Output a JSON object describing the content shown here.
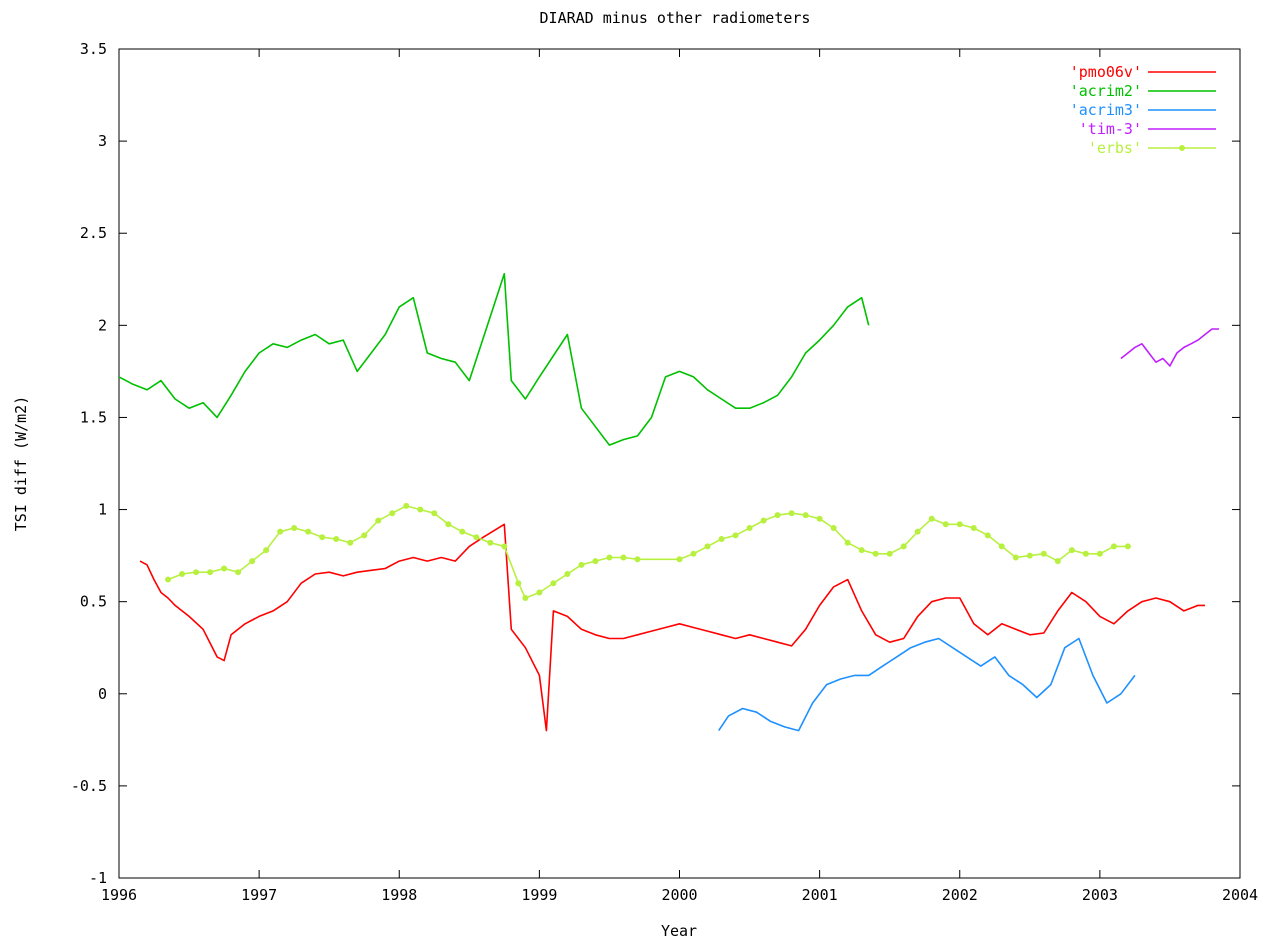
{
  "chart_data": {
    "type": "line",
    "title": "DIARAD minus other radiometers",
    "xlabel": "Year",
    "ylabel": "TSI diff (W/m2)",
    "xlim": [
      1996,
      2004
    ],
    "ylim": [
      -1,
      3.5
    ],
    "xticks": [
      1996,
      1997,
      1998,
      1999,
      2000,
      2001,
      2002,
      2003,
      2004
    ],
    "yticks": [
      -1,
      -0.5,
      0,
      0.5,
      1,
      1.5,
      2,
      2.5,
      3,
      3.5
    ],
    "xtick_labels": [
      "1996",
      "1997",
      "1998",
      "1999",
      "2000",
      "2001",
      "2002",
      "2003",
      "2004"
    ],
    "ytick_labels": [
      "-1",
      "-0.5",
      "0",
      "0.5",
      "1",
      "1.5",
      "2",
      "2.5",
      "3",
      "3.5"
    ],
    "grid": false,
    "legend_position": "top-right",
    "series": [
      {
        "name": "'pmo06v'",
        "color": "#ff0000",
        "x": [
          1996.15,
          1996.2,
          1996.25,
          1996.3,
          1996.35,
          1996.4,
          1996.5,
          1996.6,
          1996.7,
          1996.75,
          1996.8,
          1996.9,
          1997.0,
          1997.1,
          1997.2,
          1997.3,
          1997.4,
          1997.5,
          1997.6,
          1997.7,
          1997.8,
          1997.9,
          1998.0,
          1998.1,
          1998.2,
          1998.3,
          1998.4,
          1998.5,
          1998.6,
          1998.75,
          1998.8,
          1998.9,
          1999.0,
          1999.05,
          1999.1,
          1999.2,
          1999.3,
          1999.4,
          1999.5,
          1999.6,
          1999.7,
          1999.8,
          1999.9,
          2000.0,
          2000.1,
          2000.2,
          2000.3,
          2000.4,
          2000.5,
          2000.6,
          2000.7,
          2000.8,
          2000.9,
          2001.0,
          2001.1,
          2001.2,
          2001.3,
          2001.4,
          2001.5,
          2001.6,
          2001.7,
          2001.8,
          2001.9,
          2002.0,
          2002.1,
          2002.2,
          2002.3,
          2002.4,
          2002.5,
          2002.6,
          2002.7,
          2002.8,
          2002.9,
          2003.0,
          2003.1,
          2003.2,
          2003.3,
          2003.4,
          2003.5,
          2003.6,
          2003.7,
          2003.75
        ],
        "y": [
          0.72,
          0.7,
          0.62,
          0.55,
          0.52,
          0.48,
          0.42,
          0.35,
          0.2,
          0.18,
          0.32,
          0.38,
          0.42,
          0.45,
          0.5,
          0.6,
          0.65,
          0.66,
          0.64,
          0.66,
          0.67,
          0.68,
          0.72,
          0.74,
          0.72,
          0.74,
          0.72,
          0.8,
          0.85,
          0.92,
          0.35,
          0.25,
          0.1,
          -0.2,
          0.45,
          0.42,
          0.35,
          0.32,
          0.3,
          0.3,
          0.32,
          0.34,
          0.36,
          0.38,
          0.36,
          0.34,
          0.32,
          0.3,
          0.32,
          0.3,
          0.28,
          0.26,
          0.35,
          0.48,
          0.58,
          0.62,
          0.45,
          0.32,
          0.28,
          0.3,
          0.42,
          0.5,
          0.52,
          0.52,
          0.38,
          0.32,
          0.38,
          0.35,
          0.32,
          0.33,
          0.45,
          0.55,
          0.5,
          0.42,
          0.38,
          0.45,
          0.5,
          0.52,
          0.5,
          0.45,
          0.48,
          0.48
        ]
      },
      {
        "name": "'acrim2'",
        "color": "#00c000",
        "x": [
          1996.0,
          1996.1,
          1996.2,
          1996.3,
          1996.4,
          1996.5,
          1996.6,
          1996.7,
          1996.8,
          1996.9,
          1997.0,
          1997.1,
          1997.2,
          1997.3,
          1997.4,
          1997.5,
          1997.6,
          1997.7,
          1997.8,
          1997.9,
          1998.0,
          1998.1,
          1998.2,
          1998.3,
          1998.4,
          1998.5,
          1998.75,
          1998.8,
          1998.9,
          1999.0,
          1999.2,
          1999.3,
          1999.4,
          1999.5,
          1999.6,
          1999.7,
          1999.8,
          1999.9,
          2000.0,
          2000.1,
          2000.2,
          2000.3,
          2000.4,
          2000.5,
          2000.6,
          2000.7,
          2000.8,
          2000.9,
          2001.0,
          2001.1,
          2001.2,
          2001.3,
          2001.35
        ],
        "y": [
          1.72,
          1.68,
          1.65,
          1.7,
          1.6,
          1.55,
          1.58,
          1.5,
          1.62,
          1.75,
          1.85,
          1.9,
          1.88,
          1.92,
          1.95,
          1.9,
          1.92,
          1.75,
          1.85,
          1.95,
          2.1,
          2.15,
          1.85,
          1.82,
          1.8,
          1.7,
          2.28,
          1.7,
          1.6,
          1.72,
          1.95,
          1.55,
          1.45,
          1.35,
          1.38,
          1.4,
          1.5,
          1.72,
          1.75,
          1.72,
          1.65,
          1.6,
          1.55,
          1.55,
          1.58,
          1.62,
          1.72,
          1.85,
          1.92,
          2.0,
          2.1,
          2.15,
          2.0
        ]
      },
      {
        "name": "'acrim3'",
        "color": "#1e90ff",
        "x": [
          2000.28,
          2000.35,
          2000.45,
          2000.55,
          2000.65,
          2000.75,
          2000.85,
          2000.95,
          2001.05,
          2001.15,
          2001.25,
          2001.35,
          2001.45,
          2001.55,
          2001.65,
          2001.75,
          2001.85,
          2001.95,
          2002.05,
          2002.15,
          2002.25,
          2002.35,
          2002.45,
          2002.55,
          2002.65,
          2002.75,
          2002.85,
          2002.95,
          2003.05,
          2003.15,
          2003.25
        ],
        "y": [
          -0.2,
          -0.12,
          -0.08,
          -0.1,
          -0.15,
          -0.18,
          -0.2,
          -0.05,
          0.05,
          0.08,
          0.1,
          0.1,
          0.15,
          0.2,
          0.25,
          0.28,
          0.3,
          0.25,
          0.2,
          0.15,
          0.2,
          0.1,
          0.05,
          -0.02,
          0.05,
          0.25,
          0.3,
          0.1,
          -0.05,
          0.0,
          0.1
        ]
      },
      {
        "name": "'tim-3'",
        "color": "#c020ff",
        "x": [
          2003.15,
          2003.2,
          2003.25,
          2003.3,
          2003.35,
          2003.4,
          2003.45,
          2003.5,
          2003.55,
          2003.6,
          2003.65,
          2003.7,
          2003.75,
          2003.8,
          2003.85
        ],
        "y": [
          1.82,
          1.85,
          1.88,
          1.9,
          1.85,
          1.8,
          1.82,
          1.78,
          1.85,
          1.88,
          1.9,
          1.92,
          1.95,
          1.98,
          1.98
        ]
      },
      {
        "name": "'erbs'",
        "color": "#b8f040",
        "x": [
          1996.35,
          1996.45,
          1996.55,
          1996.65,
          1996.75,
          1996.85,
          1996.95,
          1997.05,
          1997.15,
          1997.25,
          1997.35,
          1997.45,
          1997.55,
          1997.65,
          1997.75,
          1997.85,
          1997.95,
          1998.05,
          1998.15,
          1998.25,
          1998.35,
          1998.45,
          1998.55,
          1998.65,
          1998.75,
          1998.85,
          1998.9,
          1999.0,
          1999.1,
          1999.2,
          1999.3,
          1999.4,
          1999.5,
          1999.6,
          1999.7,
          2000.0,
          2000.1,
          2000.2,
          2000.3,
          2000.4,
          2000.5,
          2000.6,
          2000.7,
          2000.8,
          2000.9,
          2001.0,
          2001.1,
          2001.2,
          2001.3,
          2001.4,
          2001.5,
          2001.6,
          2001.7,
          2001.8,
          2001.9,
          2002.0,
          2002.1,
          2002.2,
          2002.3,
          2002.4,
          2002.5,
          2002.6,
          2002.7,
          2002.8,
          2002.9,
          2003.0,
          2003.1,
          2003.2
        ],
        "y": [
          0.62,
          0.65,
          0.66,
          0.66,
          0.68,
          0.66,
          0.72,
          0.78,
          0.88,
          0.9,
          0.88,
          0.85,
          0.84,
          0.82,
          0.86,
          0.94,
          0.98,
          1.02,
          1.0,
          0.98,
          0.92,
          0.88,
          0.85,
          0.82,
          0.8,
          0.6,
          0.52,
          0.55,
          0.6,
          0.65,
          0.7,
          0.72,
          0.74,
          0.74,
          0.73,
          0.73,
          0.76,
          0.8,
          0.84,
          0.86,
          0.9,
          0.94,
          0.97,
          0.98,
          0.97,
          0.95,
          0.9,
          0.82,
          0.78,
          0.76,
          0.76,
          0.8,
          0.88,
          0.95,
          0.92,
          0.92,
          0.9,
          0.86,
          0.8,
          0.74,
          0.75,
          0.76,
          0.72,
          0.78,
          0.76,
          0.76,
          0.8,
          0.8
        ]
      }
    ]
  }
}
